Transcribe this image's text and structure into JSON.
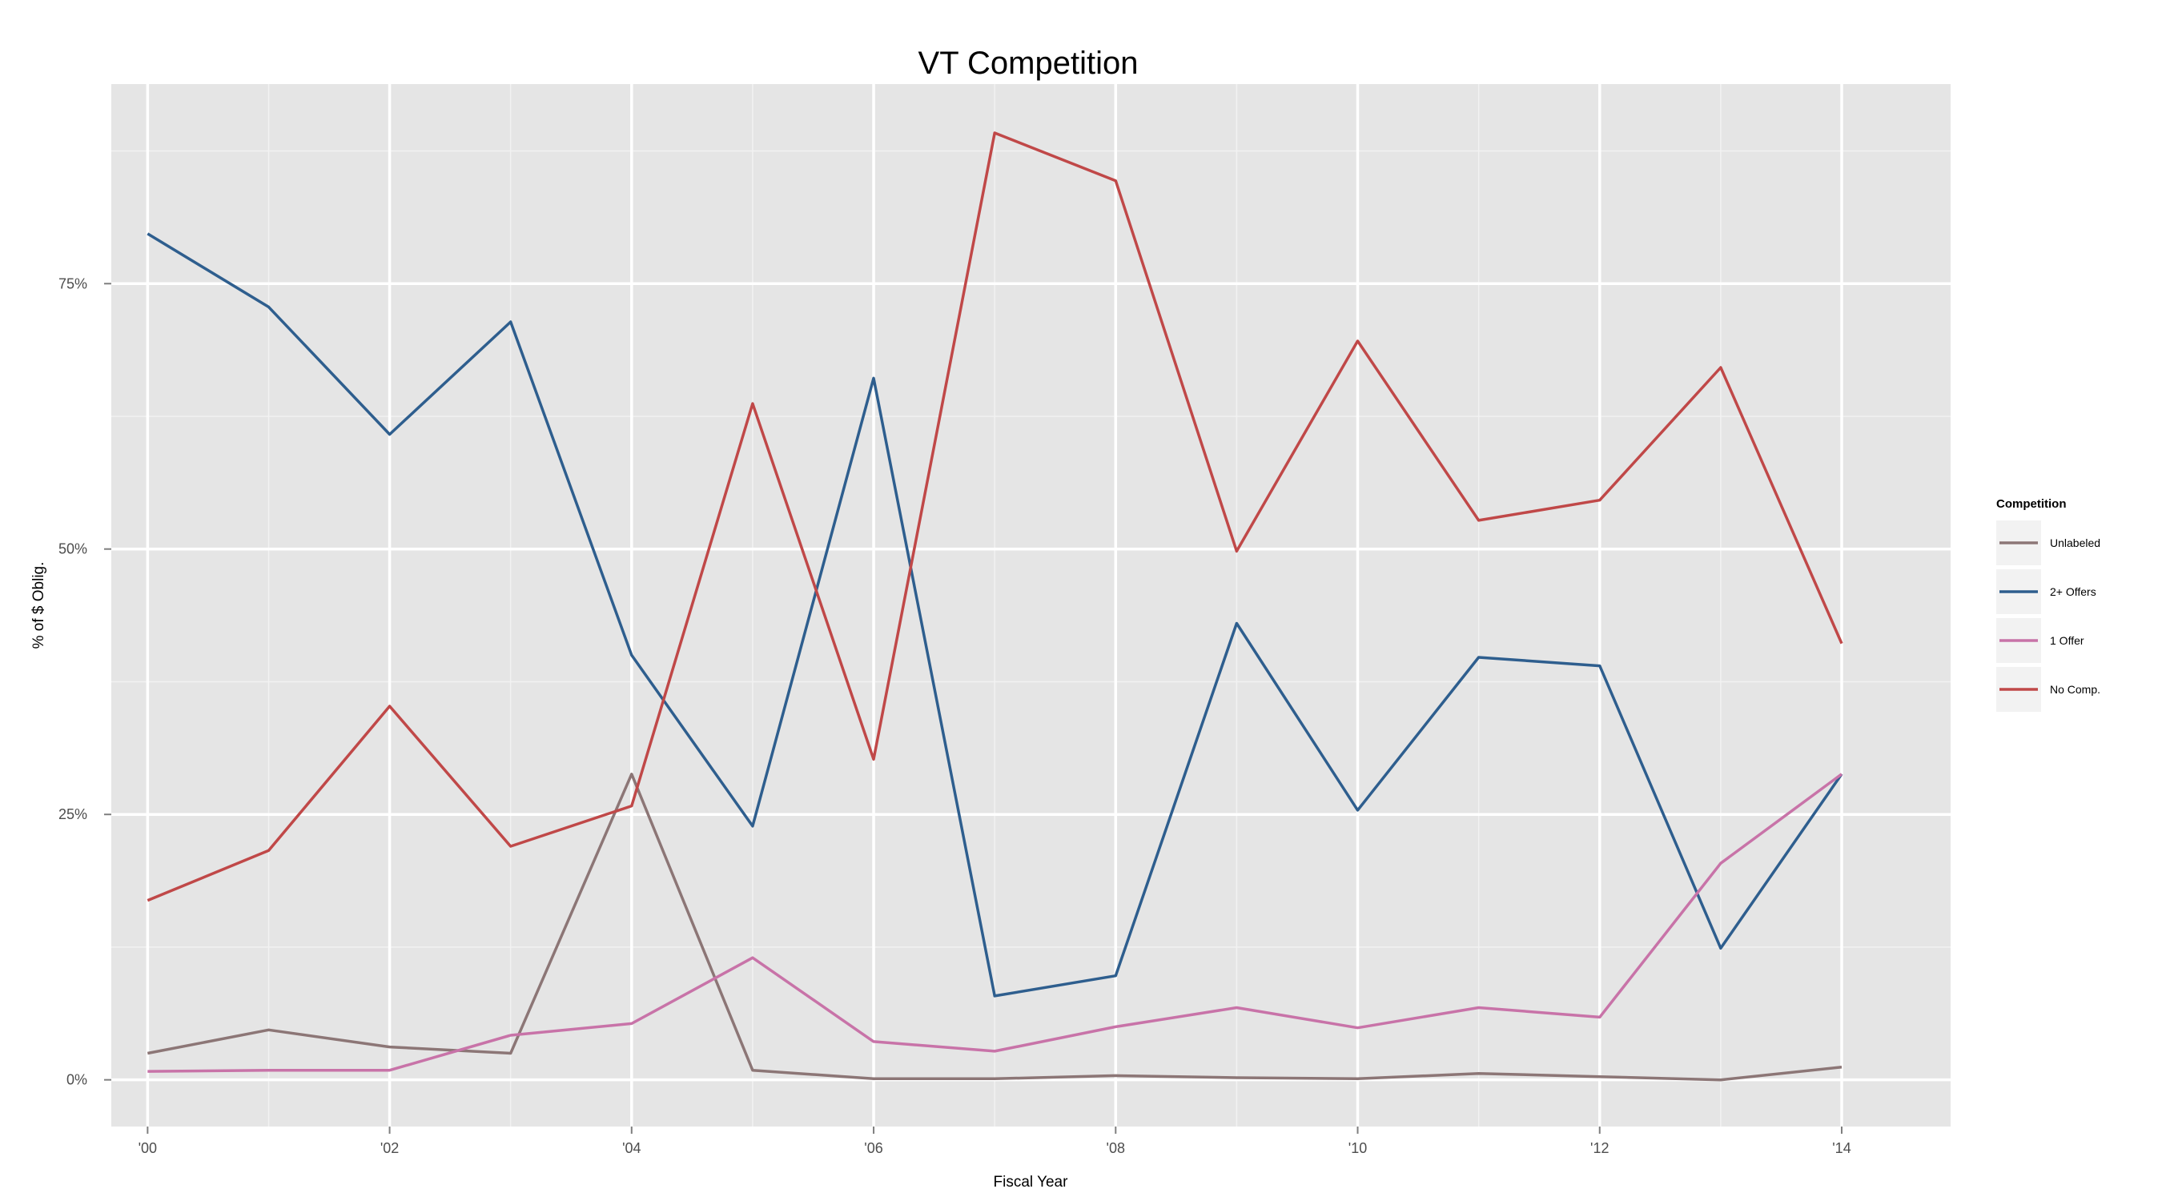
{
  "chart_data": {
    "type": "line",
    "title": "VT Competition",
    "xlabel": "Fiscal Year",
    "ylabel": "% of $ Oblig.",
    "x": [
      2000,
      2001,
      2002,
      2003,
      2004,
      2005,
      2006,
      2007,
      2008,
      2009,
      2010,
      2011,
      2012,
      2013,
      2014
    ],
    "xlim": [
      1999.7,
      2014.9
    ],
    "ylim": [
      -0.044,
      0.938
    ],
    "x_ticks": [
      2000,
      2002,
      2004,
      2006,
      2008,
      2010,
      2012,
      2014
    ],
    "x_tick_labels": [
      "'00",
      "'02",
      "'04",
      "'06",
      "'08",
      "'10",
      "'12",
      "'14"
    ],
    "y_ticks": [
      0,
      0.25,
      0.5,
      0.75
    ],
    "y_tick_labels": [
      "0%",
      "25%",
      "50%",
      "75%"
    ],
    "grid": true,
    "legend_title": "Competition",
    "legend_position": "right",
    "series": [
      {
        "name": "Unlabeled",
        "color": "#8c7676",
        "values": [
          0.025,
          0.047,
          0.031,
          0.025,
          0.288,
          0.009,
          0.001,
          0.001,
          0.004,
          0.002,
          0.001,
          0.006,
          0.003,
          0.0,
          0.012
        ]
      },
      {
        "name": "2+ Offers",
        "color": "#2e5e8e",
        "values": [
          0.797,
          0.728,
          0.608,
          0.714,
          0.4,
          0.239,
          0.661,
          0.079,
          0.098,
          0.43,
          0.254,
          0.398,
          0.39,
          0.124,
          0.288
        ]
      },
      {
        "name": "1 Offer",
        "color": "#c873a8",
        "values": [
          0.008,
          0.009,
          0.009,
          0.042,
          0.053,
          0.115,
          0.036,
          0.027,
          0.05,
          0.068,
          0.049,
          0.068,
          0.059,
          0.204,
          0.288
        ]
      },
      {
        "name": "No Comp.",
        "color": "#c04848",
        "values": [
          0.169,
          0.216,
          0.352,
          0.22,
          0.258,
          0.637,
          0.302,
          0.892,
          0.847,
          0.498,
          0.696,
          0.527,
          0.546,
          0.671,
          0.411
        ]
      }
    ]
  }
}
